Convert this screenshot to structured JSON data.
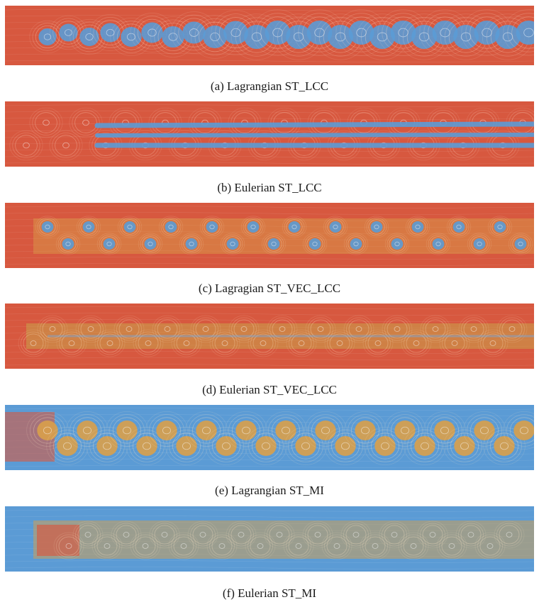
{
  "figure": {
    "panels": [
      {
        "caption": "(a) Lagrangian ST_LCC",
        "background_color": "#d7583f",
        "feature_color": "#5b9bd5",
        "pattern": "vortex-street"
      },
      {
        "caption": "(b) Eulerian ST_LCC",
        "background_color": "#d7583f",
        "feature_color": "#5b9bd5",
        "pattern": "streaks"
      },
      {
        "caption": "(c) Lagragian ST_VEC_LCC",
        "background_color": "#d7583f",
        "feature_color": "#5b9bd5",
        "pattern": "vortex-street-staggered"
      },
      {
        "caption": "(d) Eulerian ST_VEC_LCC",
        "background_color": "#d7583f",
        "feature_color": "#c9a24a",
        "pattern": "faint-band"
      },
      {
        "caption": "(e) Lagrangian ST_MI",
        "background_color": "#5b9bd5",
        "feature_color": "#d9a04a",
        "pattern": "vortex-street-warm"
      },
      {
        "caption": "(f) Eulerian ST_MI",
        "background_color": "#5b9bd5",
        "feature_color": "#d9a04a",
        "pattern": "wake-band"
      }
    ]
  }
}
